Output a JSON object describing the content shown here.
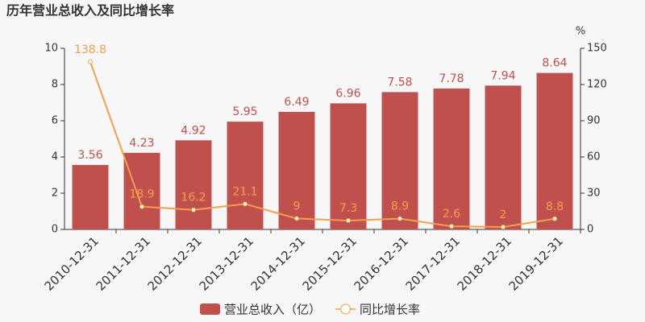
{
  "chart_data": {
    "type": "bar",
    "title": "历年营业总收入及同比增长率",
    "categories": [
      "2010-12-31",
      "2011-12-31",
      "2012-12-31",
      "2013-12-31",
      "2014-12-31",
      "2015-12-31",
      "2016-12-31",
      "2017-12-31",
      "2018-12-31",
      "2019-12-31"
    ],
    "series": [
      {
        "name": "营业总收入（亿）",
        "color": "#c0504d",
        "values": [
          3.56,
          4.23,
          4.92,
          5.95,
          6.49,
          6.96,
          7.58,
          7.78,
          7.94,
          8.64
        ]
      },
      {
        "name": "同比增长率",
        "color": "#f2a04a",
        "type": "line",
        "axis": "y2",
        "values": [
          138.8,
          18.9,
          16.2,
          21.1,
          9,
          7.3,
          8.9,
          2.6,
          2,
          8.8
        ]
      }
    ],
    "ylim": [
      0,
      10
    ],
    "yticks": [
      0,
      2,
      4,
      6,
      8,
      10
    ],
    "y2lim": [
      0,
      150
    ],
    "y2ticks": [
      0,
      30,
      60,
      90,
      120,
      150
    ],
    "y2label": "%"
  }
}
